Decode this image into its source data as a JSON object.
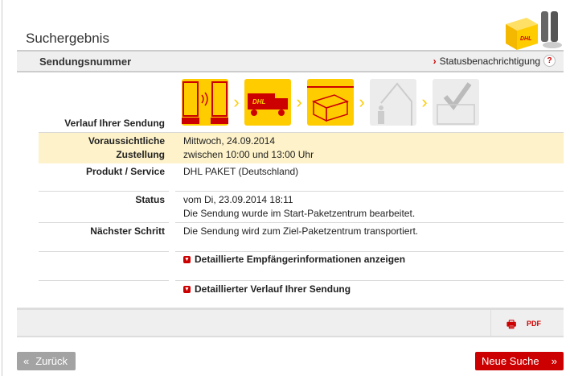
{
  "page": {
    "title": "Suchergebnis"
  },
  "header": {
    "label": "Sendungsnummer",
    "notify_link": "Statusbenachrichtigung",
    "help": "?"
  },
  "progress": {
    "steps": [
      {
        "name": "electronic-notice",
        "done": true
      },
      {
        "name": "truck",
        "done": true
      },
      {
        "name": "parcel-center",
        "done": true
      },
      {
        "name": "delivery",
        "done": false
      },
      {
        "name": "delivered",
        "done": false
      }
    ],
    "completed": 3,
    "total": 5,
    "accent": "#ffcc00"
  },
  "rows": {
    "history_label": "Verlauf Ihrer Sendung",
    "delivery": {
      "label1": "Voraussichtliche",
      "label2": "Zustellung",
      "value1": "Mittwoch, 24.09.2014",
      "value2": "zwischen 10:00 und 13:00 Uhr"
    },
    "product": {
      "label": "Produkt / Service",
      "value": "DHL PAKET (Deutschland)"
    },
    "status": {
      "label": "Status",
      "value1": "vom Di, 23.09.2014 18:11",
      "value2": "Die Sendung wurde im Start-Paketzentrum bearbeitet."
    },
    "next": {
      "label": "Nächster Schritt",
      "value": "Die Sendung wird zum Ziel-Paketzentrum transportiert."
    }
  },
  "links": {
    "recipient": "Detaillierte Empfängerinformationen anzeigen",
    "history": "Detaillierter Verlauf Ihrer Sendung"
  },
  "footer": {
    "back": "Zurück",
    "new_search": "Neue Suche"
  },
  "colors": {
    "brand_red": "#cc0000",
    "brand_yellow": "#ffcc00",
    "highlight": "#fdf2c9"
  }
}
